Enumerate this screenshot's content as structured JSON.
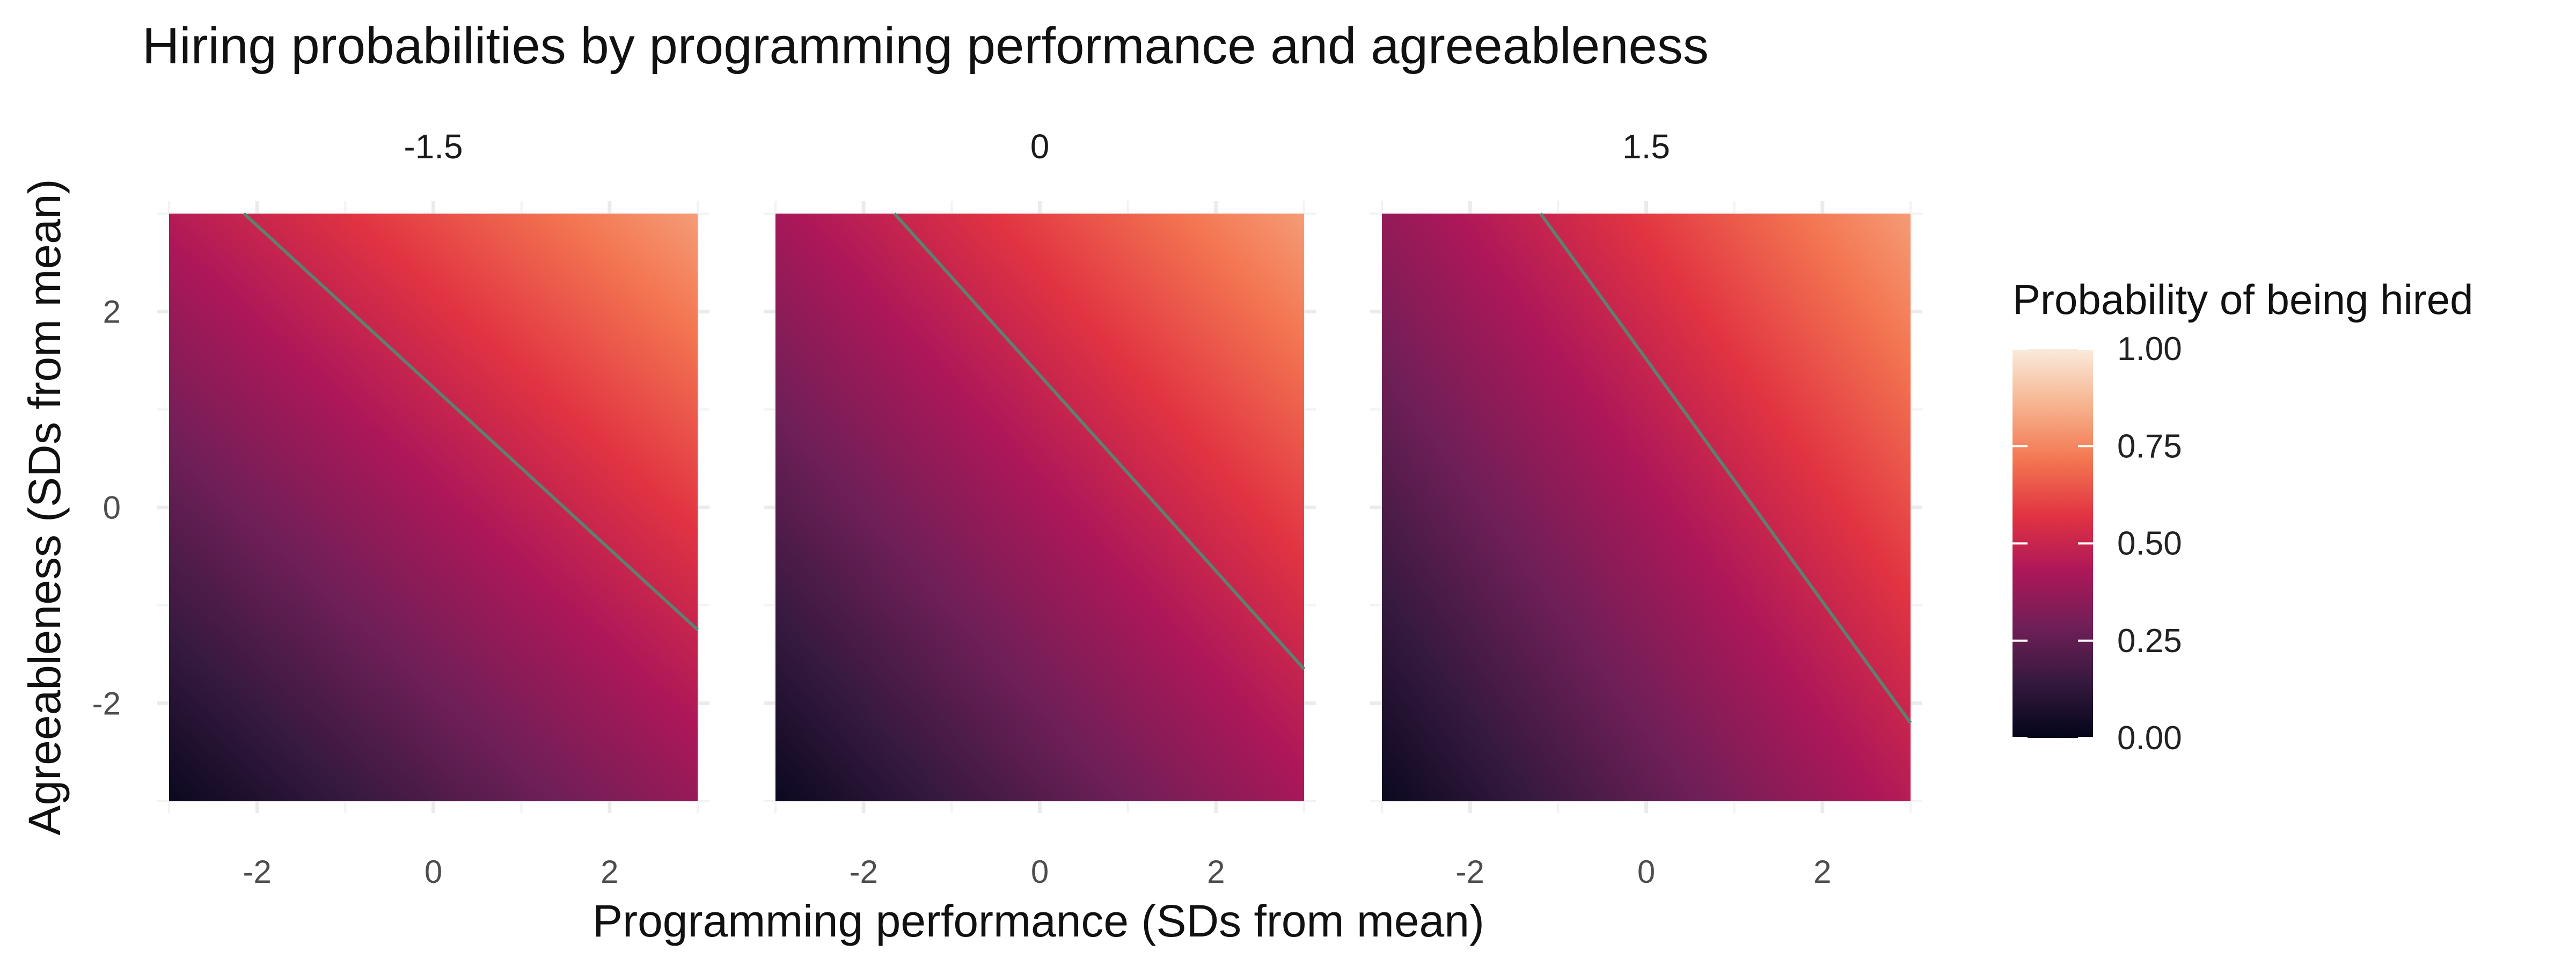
{
  "chart_data": {
    "type": "heatmap",
    "title": "Hiring probabilities by programming performance and agreeableness",
    "xlabel": "Programming performance (SDs from mean)",
    "ylabel": "Agreeableness (SDs from mean)",
    "xlim": [
      -3,
      3
    ],
    "ylim": [
      -3,
      3
    ],
    "x_ticks": [
      -2,
      0,
      2
    ],
    "y_ticks": [
      -2,
      0,
      2
    ],
    "x_tick_labels": [
      "-2",
      "0",
      "2"
    ],
    "y_tick_labels": [
      "-2",
      "0",
      "2"
    ],
    "grid": true,
    "facets": [
      {
        "label": "-1.5",
        "boundary": [
          [
            -2.15,
            3.0
          ],
          [
            3.0,
            -1.25
          ]
        ]
      },
      {
        "label": "0",
        "boundary": [
          [
            -1.65,
            3.0
          ],
          [
            3.0,
            -1.65
          ]
        ]
      },
      {
        "label": "1.5",
        "boundary": [
          [
            -1.2,
            3.0
          ],
          [
            3.0,
            -2.2
          ]
        ]
      }
    ],
    "legend": {
      "title": "Probability of being hired",
      "position": "right",
      "breaks": [
        1.0,
        0.75,
        0.5,
        0.25,
        0.0
      ],
      "labels": [
        "1.00",
        "0.75",
        "0.50",
        "0.25",
        "0.00"
      ],
      "colormap": "rocket",
      "colors": [
        "#03051a",
        "#35193e",
        "#701f57",
        "#ad1759",
        "#e13342",
        "#f37651",
        "#f6b48f",
        "#faebdd"
      ]
    }
  }
}
